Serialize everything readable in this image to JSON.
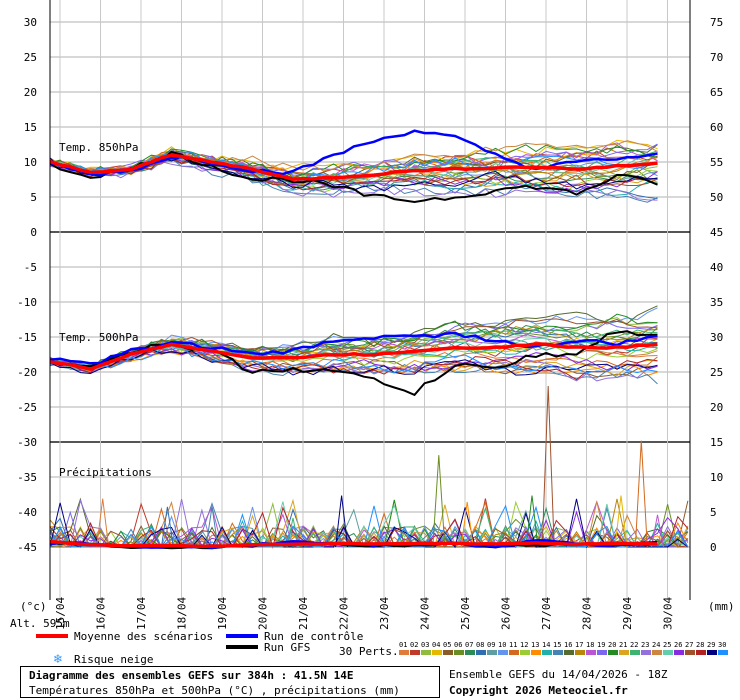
{
  "chart_data": {
    "type": "line",
    "dates": [
      "15/04",
      "16/04",
      "17/04",
      "18/04",
      "19/04",
      "20/04",
      "21/04",
      "22/04",
      "23/04",
      "24/04",
      "25/04",
      "26/04",
      "27/04",
      "28/04",
      "29/04",
      "30/04"
    ],
    "left_axis_unit": "(°c)",
    "right_axis_unit": "(mm)",
    "altitude_label": "Alt. 595m",
    "panels": [
      {
        "label": "Temp. 850hPa",
        "left_ticks": [
          "30",
          "25",
          "20",
          "15",
          "10",
          "5",
          "0"
        ],
        "right_ticks": [
          "75",
          "70",
          "65",
          "60",
          "55",
          "50",
          "45"
        ],
        "ylim": [
          0,
          30
        ],
        "mean_series": [
          10.0,
          8.5,
          9.0,
          11.0,
          10.0,
          9.0,
          7.5,
          7.8,
          8.2,
          8.8,
          9.0,
          9.2,
          9.3,
          9.0,
          9.4,
          9.8
        ],
        "control_series": [
          9.8,
          8.2,
          8.8,
          10.8,
          10.0,
          8.8,
          8.5,
          11.0,
          13.0,
          14.5,
          13.5,
          11.0,
          9.0,
          10.0,
          10.5,
          11.0
        ],
        "gfs_series": [
          9.5,
          8.0,
          9.0,
          11.2,
          9.5,
          7.5,
          7.5,
          6.5,
          5.0,
          4.5,
          5.0,
          6.0,
          6.5,
          5.5,
          8.0,
          7.0
        ]
      },
      {
        "label": "Temp. 500hPa",
        "left_ticks": [
          "-5",
          "-10",
          "-15",
          "-20",
          "-25",
          "-30"
        ],
        "right_ticks": [
          "40",
          "35",
          "30",
          "25",
          "20",
          "15"
        ],
        "ylim": [
          -30,
          0
        ],
        "mean_series": [
          -18.5,
          -19.5,
          -17.5,
          -16.0,
          -17.0,
          -18.0,
          -18.0,
          -17.5,
          -17.5,
          -17.0,
          -16.5,
          -16.5,
          -16.0,
          -16.5,
          -16.5,
          -16.0
        ],
        "control_series": [
          -18.0,
          -19.0,
          -17.0,
          -15.8,
          -16.5,
          -17.5,
          -17.0,
          -15.5,
          -15.0,
          -15.0,
          -14.5,
          -15.5,
          -16.5,
          -15.5,
          -16.0,
          -15.0
        ],
        "gfs_series": [
          -18.5,
          -19.0,
          -17.0,
          -16.0,
          -17.0,
          -20.0,
          -19.5,
          -20.0,
          -21.0,
          -23.0,
          -19.0,
          -19.5,
          -17.5,
          -17.5,
          -14.0,
          -15.0
        ]
      },
      {
        "label": "Précipitations",
        "left_ticks": [
          "-35",
          "-40",
          "-45"
        ],
        "right_ticks": [
          "10",
          "5",
          "0"
        ],
        "ylim_mm": [
          0,
          10
        ],
        "mean_series": [
          0.8,
          0.3,
          0.2,
          0.2,
          0.1,
          0.3,
          0.4,
          0.5,
          0.4,
          0.5,
          0.5,
          0.4,
          0.6,
          0.4,
          0.5,
          0.4
        ],
        "control_series": [
          0.5,
          0.5,
          0.0,
          0.0,
          0.0,
          0.3,
          0.8,
          0.5,
          0.3,
          0.5,
          0.5,
          0.0,
          1.0,
          0.5,
          0.2,
          0.5
        ],
        "gfs_series": [
          0.6,
          0.3,
          0.0,
          0.0,
          0.0,
          0.2,
          0.5,
          0.4,
          0.2,
          0.3,
          0.4,
          0.1,
          0.3,
          0.4,
          0.2,
          0.6
        ],
        "peak_mm": [
          2.5,
          2.0,
          1.5,
          0.5,
          0.5,
          1.0,
          1.5,
          3.5,
          2.5,
          3.0,
          15.0,
          2.5,
          3.0,
          2.5,
          3.0,
          7.5,
          23.0,
          3.0,
          3.5,
          2.0,
          17.0,
          2.5
        ]
      }
    ]
  },
  "legend": {
    "mean_label": "Moyenne des scénarios",
    "control_label": "Run de contrôle",
    "gfs_label": "Run GFS",
    "snow_label": "Risque neige",
    "perts_label": "30 Perts.",
    "pert_numbers": [
      "01",
      "02",
      "03",
      "04",
      "05",
      "06",
      "07",
      "08",
      "09",
      "10",
      "11",
      "12",
      "13",
      "14",
      "15",
      "16",
      "17",
      "18",
      "19",
      "20",
      "21",
      "22",
      "23",
      "24",
      "25",
      "26",
      "27",
      "28",
      "29",
      "30"
    ]
  },
  "colors": {
    "mean": "#ff0000",
    "control": "#0000ff",
    "gfs": "#000000",
    "grid": "#808080",
    "pert_palette": [
      "#e07b39",
      "#c0392b",
      "#8fbc3f",
      "#e6b800",
      "#8b5a2b",
      "#6b8e23",
      "#2e8b57",
      "#2f6fb0",
      "#5f9ea0",
      "#6495ed",
      "#d2691e",
      "#9acd32",
      "#ff8c00",
      "#20b2aa",
      "#4682b4",
      "#556b2f",
      "#b8860b",
      "#ba55d3",
      "#7b68ee",
      "#228b22",
      "#daa520",
      "#3cb371",
      "#9370db",
      "#cd853f",
      "#66cdaa",
      "#8a2be2",
      "#a0522d",
      "#b22222",
      "#000080",
      "#1e90ff"
    ]
  },
  "caption": {
    "title": "Diagramme des ensembles GEFS sur 384h : 41.5N 14E",
    "subtitle": "Températures 850hPa et 500hPa (°C) , précipitations (mm)"
  },
  "run_info": "Ensemble GEFS du 14/04/2026 - 18Z",
  "copyright": "Copyright 2026 Meteociel.fr"
}
